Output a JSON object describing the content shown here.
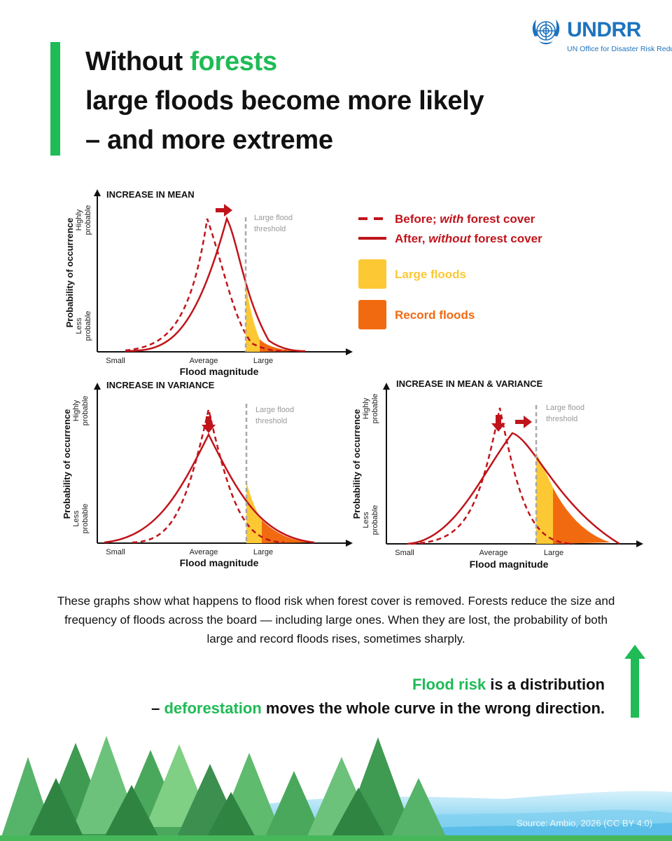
{
  "brand": {
    "name": "UNDRR",
    "subtitle": "UN Office for Disaster Risk Reduction",
    "color": "#1e73be"
  },
  "headline": {
    "line1_prefix": "Without ",
    "line1_highlight": "forests",
    "line2": "large floods become more likely",
    "line3": "– and more extreme"
  },
  "colors": {
    "accent_green": "#1fbb56",
    "curve_red": "#c0141b",
    "large_floods_yellow": "#fcc934",
    "record_floods_orange": "#f26a0f",
    "threshold_gray": "#a8a8a8"
  },
  "chart_common": {
    "y_axis_label": "Probability of occurrence",
    "y_high": [
      "Highly",
      "probable"
    ],
    "y_low": [
      "Less",
      "probable"
    ],
    "x_axis_label": "Flood magnitude",
    "x_ticks": [
      "Small",
      "Average",
      "Large"
    ],
    "threshold_label": [
      "Large flood",
      "threshold"
    ]
  },
  "panels": [
    {
      "title": "INCREASE IN MEAN"
    },
    {
      "title": "INCREASE IN VARIANCE"
    },
    {
      "title": "INCREASE IN MEAN & VARIANCE"
    }
  ],
  "legend": {
    "before": {
      "prefix": "Before; ",
      "emph": "with",
      "suffix": " forest cover"
    },
    "after": {
      "prefix": "After, ",
      "emph": "without",
      "suffix": " forest cover"
    },
    "large": "Large floods",
    "record": "Record floods"
  },
  "explanation": "These graphs show what happens to flood risk when forest cover is removed. Forests reduce the size and frequency of floods across the board — including large ones. When they are lost, the probability of both large and record floods rises, sometimes sharply.",
  "callout": {
    "line1_highlight": "Flood risk",
    "line1_rest": " is a distribution",
    "line2_prefix": "– ",
    "line2_highlight": "deforestation",
    "line2_rest": " moves the whole curve in the wrong direction."
  },
  "source": "Source: Ambio, 2026 (CC BY 4.0)"
}
